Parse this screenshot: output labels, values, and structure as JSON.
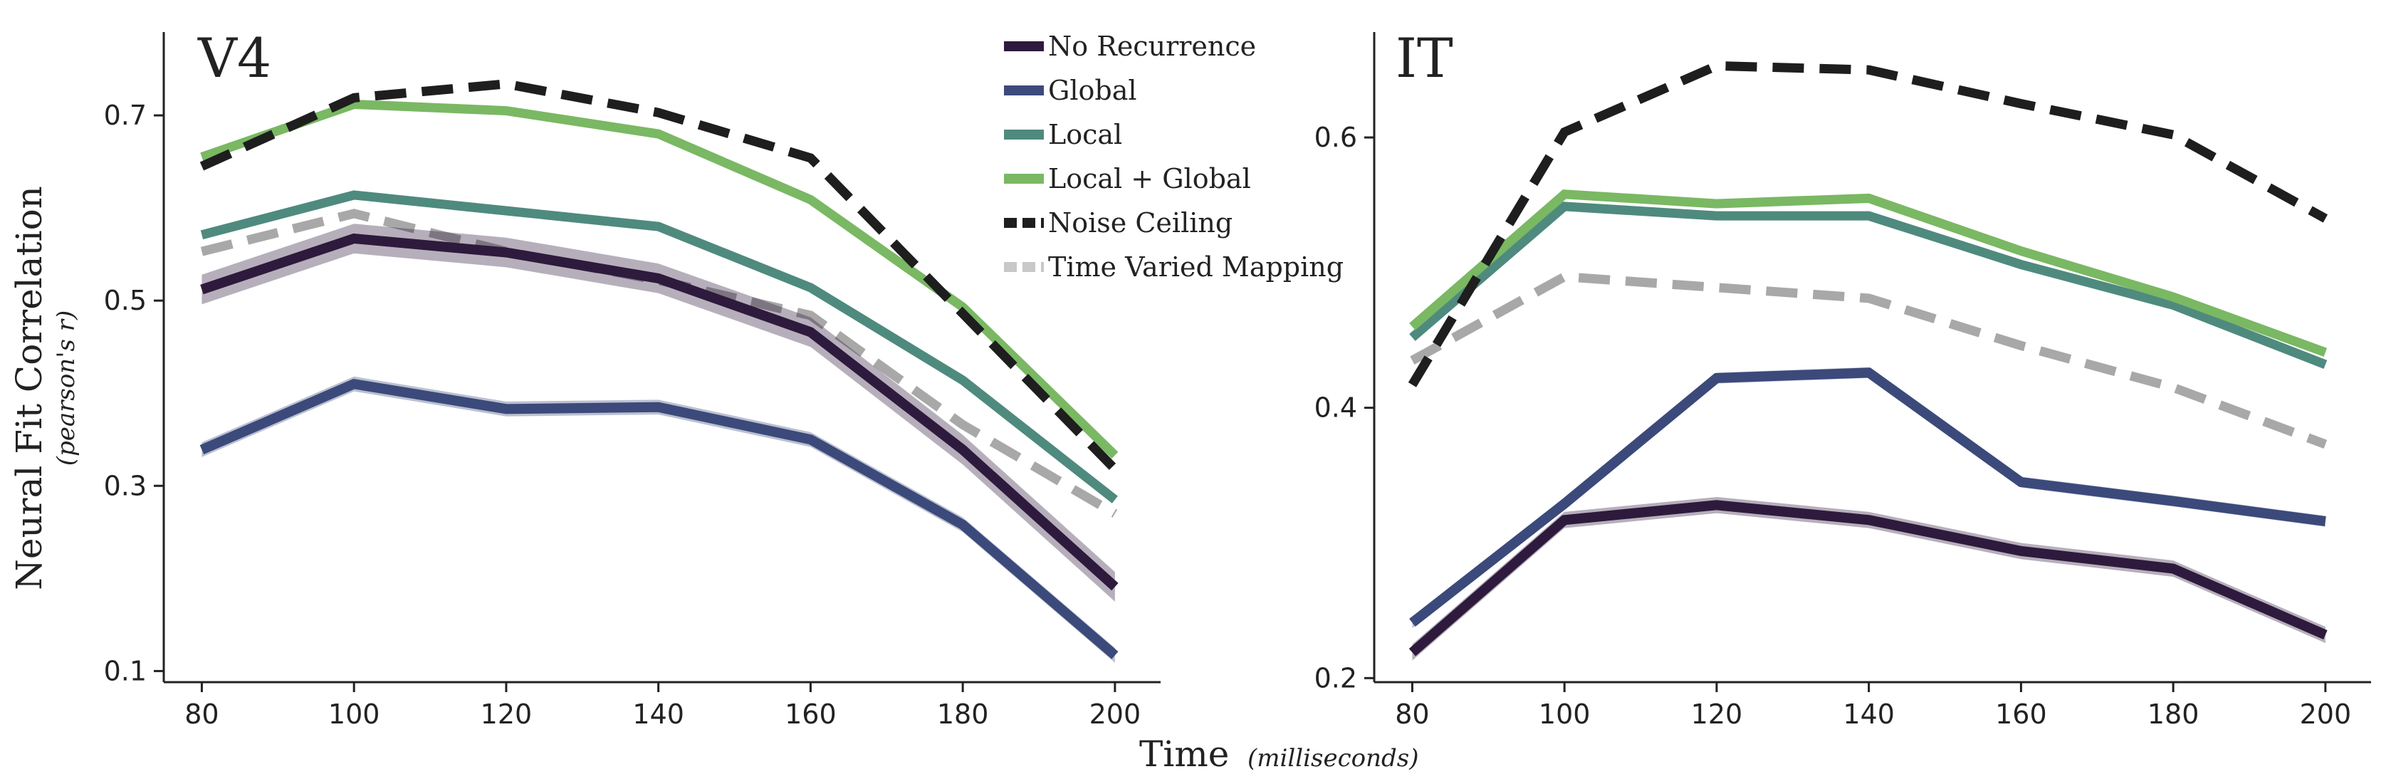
{
  "figure": {
    "xlabel": "Time",
    "xlabel_unit": "(milliseconds)",
    "ylabel": "Neural Fit Correlation",
    "ylabel_unit": "(pearson's r)"
  },
  "legend": {
    "position": "top-center",
    "items": [
      {
        "label": "No Recurrence",
        "color": "#2e1a3d",
        "style": "solid"
      },
      {
        "label": "Global",
        "color": "#3b4a7a",
        "style": "solid"
      },
      {
        "label": "Local",
        "color": "#4f8a7e",
        "style": "solid"
      },
      {
        "label": "Local + Global",
        "color": "#7ab863",
        "style": "solid"
      },
      {
        "label": "Noise Ceiling",
        "color": "#1e1e1e",
        "style": "dashed"
      },
      {
        "label": "Time Varied Mapping",
        "color": "#c8c8c8",
        "style": "dashed"
      }
    ]
  },
  "chart_data": [
    {
      "type": "line",
      "title": "V4",
      "xlabel": "Time (milliseconds)",
      "ylabel": "Neural Fit Correlation (pearson's r)",
      "x": [
        80,
        100,
        120,
        140,
        160,
        180,
        200
      ],
      "xticks": [
        "80",
        "100",
        "120",
        "140",
        "160",
        "180",
        "200"
      ],
      "xlim": [
        75,
        206
      ],
      "ylim": [
        0.088,
        0.79
      ],
      "yticks": [
        0.1,
        0.3,
        0.5,
        0.7
      ],
      "ytick_labels": [
        "0.1",
        "0.3",
        "0.5",
        "0.7"
      ],
      "grid": false,
      "series": [
        {
          "name": "Time Varied Mapping",
          "color": "#a8a8a8",
          "dashed": true,
          "values": [
            0.553,
            0.594,
            0.553,
            0.522,
            0.484,
            0.366,
            0.27
          ]
        },
        {
          "name": "No Recurrence",
          "color": "#2e1a3d",
          "band": 0.016,
          "values": [
            0.512,
            0.567,
            0.552,
            0.524,
            0.466,
            0.339,
            0.191
          ]
        },
        {
          "name": "Global",
          "color": "#3b4a7a",
          "band": 0.008,
          "values": [
            0.339,
            0.41,
            0.383,
            0.385,
            0.35,
            0.258,
            0.117
          ]
        },
        {
          "name": "Local",
          "color": "#4f8a7e",
          "values": [
            0.571,
            0.614,
            0.597,
            0.58,
            0.514,
            0.414,
            0.285
          ]
        },
        {
          "name": "Local + Global",
          "color": "#7ab863",
          "values": [
            0.655,
            0.712,
            0.705,
            0.68,
            0.609,
            0.493,
            0.333
          ]
        },
        {
          "name": "Noise Ceiling",
          "color": "#1e1e1e",
          "dashed": true,
          "values": [
            0.645,
            0.719,
            0.734,
            0.703,
            0.654,
            0.486,
            0.318
          ]
        }
      ]
    },
    {
      "type": "line",
      "title": "IT",
      "xlabel": "Time (milliseconds)",
      "ylabel": "",
      "x": [
        80,
        100,
        120,
        140,
        160,
        180,
        200
      ],
      "xticks": [
        "80",
        "100",
        "120",
        "140",
        "160",
        "180",
        "200"
      ],
      "xlim": [
        75,
        206
      ],
      "ylim": [
        0.197,
        0.678
      ],
      "yticks": [
        0.2,
        0.4,
        0.6
      ],
      "ytick_labels": [
        "0.2",
        "0.4",
        "0.6"
      ],
      "grid": false,
      "series": [
        {
          "name": "Time Varied Mapping",
          "color": "#a8a8a8",
          "dashed": true,
          "values": [
            0.435,
            0.497,
            0.489,
            0.481,
            0.446,
            0.415,
            0.373
          ]
        },
        {
          "name": "No Recurrence",
          "color": "#2e1a3d",
          "band": 0.006,
          "values": [
            0.219,
            0.317,
            0.328,
            0.317,
            0.294,
            0.281,
            0.232
          ]
        },
        {
          "name": "Global",
          "color": "#3b4a7a",
          "band": 0.004,
          "values": [
            0.241,
            0.329,
            0.422,
            0.426,
            0.345,
            0.331,
            0.316
          ]
        },
        {
          "name": "Local",
          "color": "#4f8a7e",
          "values": [
            0.452,
            0.549,
            0.542,
            0.542,
            0.506,
            0.476,
            0.432
          ]
        },
        {
          "name": "Local + Global",
          "color": "#7ab863",
          "values": [
            0.46,
            0.558,
            0.551,
            0.555,
            0.516,
            0.482,
            0.441
          ]
        },
        {
          "name": "Noise Ceiling",
          "color": "#1e1e1e",
          "dashed": true,
          "values": [
            0.417,
            0.604,
            0.653,
            0.65,
            0.625,
            0.602,
            0.54
          ]
        }
      ]
    }
  ]
}
